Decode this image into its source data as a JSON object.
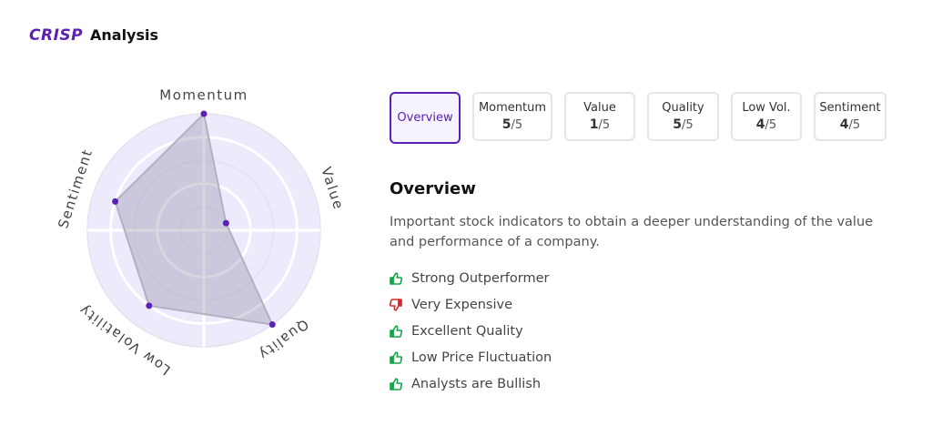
{
  "header": {
    "logo": "CRISP",
    "title": "Analysis"
  },
  "chart_data": {
    "type": "radar",
    "categories": [
      "Momentum",
      "Value",
      "Quality",
      "Low Volatility",
      "Sentiment"
    ],
    "values": [
      5,
      1,
      5,
      4,
      4
    ],
    "color": "#5b21b6",
    "rlim": [
      0,
      5
    ],
    "rticks": [
      1,
      2,
      3,
      4,
      5
    ]
  },
  "tabs": [
    {
      "label": "Overview",
      "selected": true
    },
    {
      "label": "Momentum",
      "score": 5,
      "out_of": "/5"
    },
    {
      "label": "Value",
      "score": 1,
      "out_of": "/5"
    },
    {
      "label": "Quality",
      "score": 5,
      "out_of": "/5"
    },
    {
      "label": "Low Vol.",
      "score": 4,
      "out_of": "/5"
    },
    {
      "label": "Sentiment",
      "score": 4,
      "out_of": "/5"
    }
  ],
  "overview": {
    "heading": "Overview",
    "description": "Important stock indicators to obtain a deeper understanding of the value and performance of a company.",
    "items": [
      {
        "text": "Strong Outperformer",
        "icon": "thumbs-up"
      },
      {
        "text": "Very Expensive",
        "icon": "thumbs-down"
      },
      {
        "text": "Excellent Quality",
        "icon": "thumbs-up"
      },
      {
        "text": "Low Price Fluctuation",
        "icon": "thumbs-up"
      },
      {
        "text": "Analysts are Bullish",
        "icon": "thumbs-up"
      }
    ]
  }
}
